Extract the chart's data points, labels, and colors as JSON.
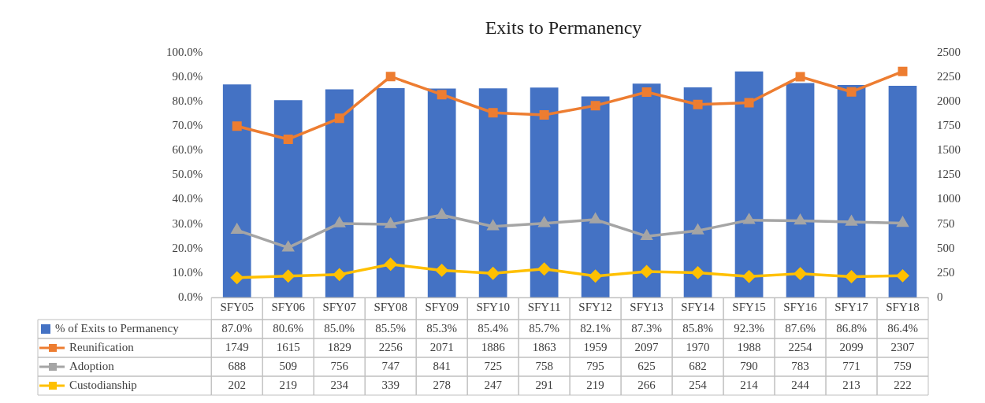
{
  "chart_data": {
    "type": "bar",
    "title": "Exits to Permanency",
    "categories": [
      "SFY05",
      "SFY06",
      "SFY07",
      "SFY08",
      "SFY09",
      "SFY10",
      "SFY11",
      "SFY12",
      "SFY13",
      "SFY14",
      "SFY15",
      "SFY16",
      "SFY17",
      "SFY18"
    ],
    "series": [
      {
        "name": "% of Exits to Permanency",
        "color": "#4472c4",
        "values": [
          87.0,
          80.6,
          85.0,
          85.5,
          85.3,
          85.4,
          85.7,
          82.1,
          87.3,
          85.8,
          92.3,
          87.6,
          86.8,
          86.4
        ],
        "value_labels": [
          "87.0%",
          "80.6%",
          "85.0%",
          "85.5%",
          "85.3%",
          "85.4%",
          "85.7%",
          "82.1%",
          "87.3%",
          "85.8%",
          "92.3%",
          "87.6%",
          "86.8%",
          "86.4%"
        ]
      },
      {
        "name": "Reunification",
        "type": "line",
        "axis": "y2",
        "marker": "square",
        "color": "#ed7d31",
        "values": [
          1749,
          1615,
          1829,
          2256,
          2071,
          1886,
          1863,
          1959,
          2097,
          1970,
          1988,
          2254,
          2099,
          2307
        ]
      },
      {
        "name": "Adoption",
        "type": "line",
        "axis": "y2",
        "marker": "triangle",
        "color": "#a5a5a5",
        "values": [
          688,
          509,
          756,
          747,
          841,
          725,
          758,
          795,
          625,
          682,
          790,
          783,
          771,
          759
        ]
      },
      {
        "name": "Custodianship",
        "type": "line",
        "axis": "y2",
        "marker": "diamond",
        "color": "#ffc000",
        "values": [
          202,
          219,
          234,
          339,
          278,
          247,
          291,
          219,
          266,
          254,
          214,
          244,
          213,
          222
        ]
      }
    ],
    "ylim": [
      0,
      100
    ],
    "yticks": [
      {
        "value": 0,
        "label": "0.0%"
      },
      {
        "value": 10,
        "label": "10.0%"
      },
      {
        "value": 20,
        "label": "20.0%"
      },
      {
        "value": 30,
        "label": "30.0%"
      },
      {
        "value": 40,
        "label": "40.0%"
      },
      {
        "value": 50,
        "label": "50.0%"
      },
      {
        "value": 60,
        "label": "60.0%"
      },
      {
        "value": 70,
        "label": "70.0%"
      },
      {
        "value": 80,
        "label": "80.0%"
      },
      {
        "value": 90,
        "label": "90.0%"
      },
      {
        "value": 100,
        "label": "100.0%"
      }
    ],
    "y2lim": [
      0,
      2500
    ],
    "y2ticks": [
      0,
      250,
      500,
      750,
      1000,
      1250,
      1500,
      1750,
      2000,
      2250,
      2500
    ],
    "legend": "bottom",
    "data_labels": true
  }
}
